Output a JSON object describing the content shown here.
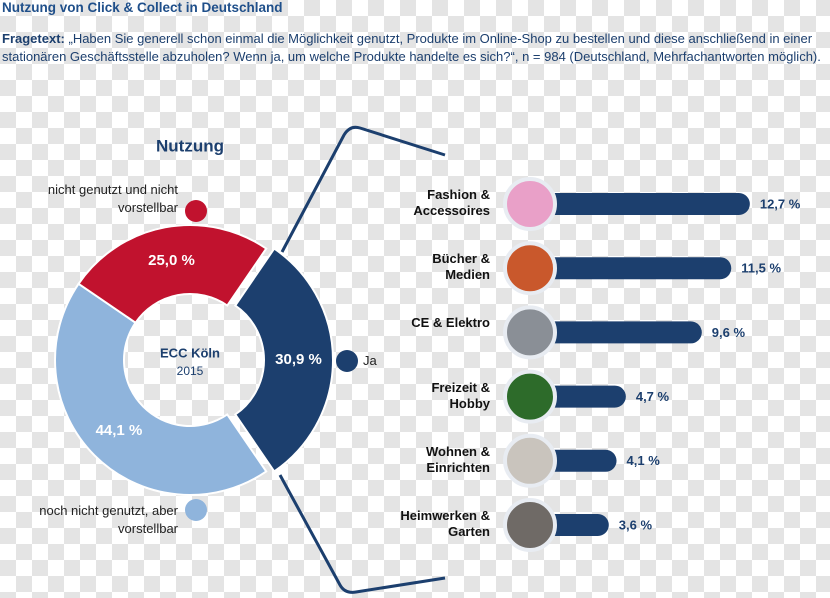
{
  "title": "Nutzung von Click & Collect in Deutschland",
  "question_label": "Fragetext:",
  "question": "„Haben Sie generell schon einmal die Möglichkeit genutzt, Produkte im Online-Shop zu bestellen und diese anschließend in einer stationären Geschäftsstelle abzuholen? Wenn ja, um welche Produkte handelte es sich?“, n = 984 (Deutschland, Mehrfachantworten möglich).",
  "chart_data": [
    {
      "type": "donut",
      "title": "Nutzung",
      "center_label": "ECC Köln",
      "center_sublabel": "2015",
      "categories": [
        "Ja",
        "noch nicht genutzt, aber vorstellbar",
        "nicht genutzt und nicht vorstellbar"
      ],
      "values": [
        30.9,
        44.1,
        25.0
      ],
      "value_labels": [
        "30,9 %",
        "44,1 %",
        "25,0 %"
      ],
      "colors": [
        "#1c3f6e",
        "#8fb4dc",
        "#c1122e"
      ]
    },
    {
      "type": "bar",
      "orientation": "horizontal",
      "categories": [
        "Fashion & Accessoires",
        "Bücher & Medien",
        "CE & Elektro",
        "Freizeit & Hobby",
        "Wohnen & Einrichten",
        "Heimwerken & Garten"
      ],
      "values": [
        12.7,
        11.5,
        9.6,
        4.7,
        4.1,
        3.6
      ],
      "value_labels": [
        "12,7 %",
        "11,5 %",
        "9,6 %",
        "4,7 %",
        "4,1 %",
        "3,6 %"
      ],
      "color": "#1c3f6e"
    }
  ]
}
